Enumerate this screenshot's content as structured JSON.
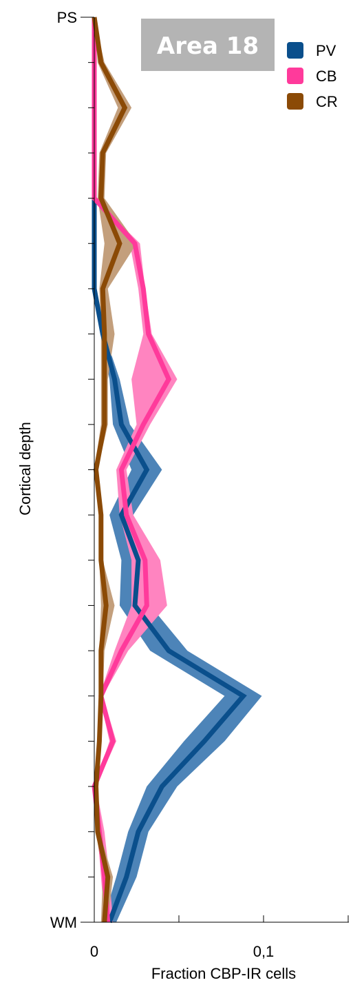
{
  "chart_data": {
    "type": "line",
    "orientation": "vertical-profile",
    "badge": "Area 18",
    "xlabel": "Fraction CBP-IR cells",
    "ylabel": "Cortical depth",
    "xlim": [
      0,
      0.15
    ],
    "x_ticks": [
      {
        "value": 0,
        "label": "0"
      },
      {
        "value": 0.1,
        "label": "0,1"
      }
    ],
    "y_top_label": "PS",
    "y_bottom_label": "WM",
    "depth_bins": 20,
    "legend_position": "top-right",
    "series": [
      {
        "name": "PV",
        "color": "#0a4f8c",
        "band_color": "#4d84b8",
        "mean": [
          0,
          0,
          0,
          0,
          0,
          0,
          0,
          0.005,
          0.012,
          0.016,
          0.031,
          0.016,
          0.026,
          0.024,
          0.044,
          0.088,
          0.065,
          0.04,
          0.026,
          0.019,
          0.009
        ],
        "lower": [
          0,
          0,
          0,
          0,
          0,
          0,
          0,
          0.004,
          0.009,
          0.011,
          0.022,
          0.009,
          0.016,
          0.015,
          0.033,
          0.077,
          0.053,
          0.031,
          0.02,
          0.013,
          0.005
        ],
        "upper": [
          0,
          0,
          0,
          0,
          0,
          0,
          0,
          0.006,
          0.015,
          0.021,
          0.04,
          0.023,
          0.035,
          0.033,
          0.055,
          0.099,
          0.077,
          0.049,
          0.032,
          0.025,
          0.013
        ]
      },
      {
        "name": "CB",
        "color": "#ff3a9b",
        "band_color": "#ff84c0",
        "mean": [
          0,
          0,
          0,
          0,
          0,
          0.024,
          0.029,
          0.032,
          0.044,
          0.029,
          0.016,
          0.019,
          0.03,
          0.031,
          0.016,
          0.004,
          0.011,
          0,
          0.003,
          0.006,
          0.008
        ],
        "lower": [
          0,
          0,
          0,
          0,
          0,
          0.021,
          0.026,
          0.029,
          0.022,
          0.025,
          0.013,
          0.015,
          0.022,
          0.022,
          0.012,
          0.003,
          0.009,
          0,
          0.002,
          0.004,
          0.006
        ],
        "upper": [
          0,
          0,
          0,
          0,
          0,
          0.027,
          0.03,
          0.034,
          0.049,
          0.033,
          0.019,
          0.023,
          0.039,
          0.043,
          0.02,
          0.005,
          0.013,
          0.001,
          0.006,
          0.009,
          0.011
        ]
      },
      {
        "name": "CR",
        "color": "#8b4a06",
        "band_color": "#c39f7c",
        "mean": [
          0,
          0.004,
          0.018,
          0.005,
          0.004,
          0.015,
          0.005,
          0.006,
          0.006,
          0.006,
          0.001,
          0.004,
          0.004,
          0.007,
          0.004,
          0.004,
          0.003,
          0.001,
          0.002,
          0.008,
          0.006
        ],
        "lower": [
          0,
          0.002,
          0.014,
          0.003,
          0.002,
          0.006,
          0.003,
          0.004,
          0.004,
          0.004,
          0,
          0.003,
          0.003,
          0.004,
          0.003,
          0.003,
          0.002,
          0,
          0.001,
          0.005,
          0.004
        ],
        "upper": [
          0,
          0.006,
          0.022,
          0.007,
          0.006,
          0.025,
          0.008,
          0.012,
          0.008,
          0.008,
          0.002,
          0.005,
          0.005,
          0.012,
          0.006,
          0.005,
          0.004,
          0.002,
          0.003,
          0.011,
          0.008
        ]
      }
    ]
  }
}
